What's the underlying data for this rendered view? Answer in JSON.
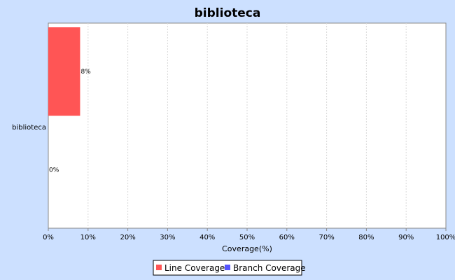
{
  "chart_data": {
    "type": "bar",
    "orientation": "horizontal",
    "title": "biblioteca",
    "categories": [
      "biblioteca"
    ],
    "series": [
      {
        "name": "Line Coverage",
        "values": [
          8
        ],
        "label": "8%",
        "color": "#ff5555"
      },
      {
        "name": "Branch Coverage",
        "values": [
          0
        ],
        "label": "0%",
        "color": "#5555ff"
      }
    ],
    "xlabel": "Coverage(%)",
    "ylabel": "",
    "xlim": [
      0,
      100
    ],
    "x_ticks": [
      "0%",
      "10%",
      "20%",
      "30%",
      "40%",
      "50%",
      "60%",
      "70%",
      "80%",
      "90%",
      "100%"
    ],
    "grid": true,
    "legend": "bottom-center"
  }
}
